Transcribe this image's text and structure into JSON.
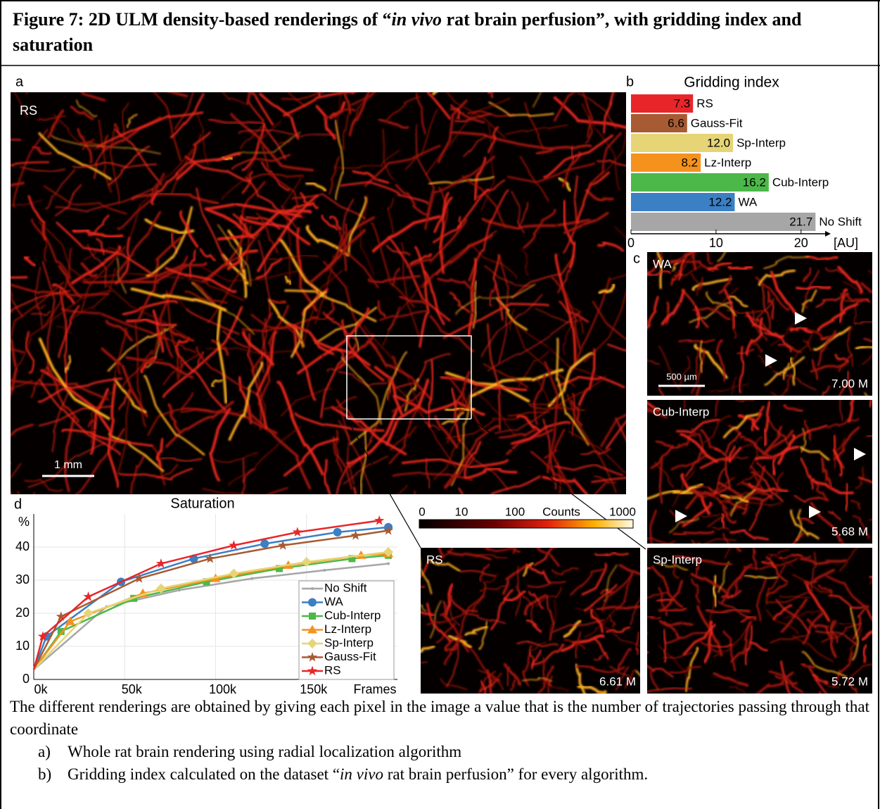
{
  "header": {
    "title": [
      "Figure 7: 2D ULM density-based renderings of “",
      "in vivo",
      " rat brain perfusion”, with gridding index and saturation"
    ]
  },
  "panels": {
    "a": {
      "label": "a",
      "image_label": "RS",
      "scale_bar": "1 mm"
    },
    "c": {
      "label": "c",
      "images": [
        {
          "label": "WA",
          "count": "7.00 M",
          "scale_bar": "500 µm"
        },
        {
          "label": "Cub-Interp",
          "count": "5.68 M"
        },
        {
          "label": "Sp-Interp",
          "count": "5.72 M"
        },
        {
          "label": "RS",
          "count": "6.61 M"
        }
      ]
    },
    "colorbar": {
      "ticks": [
        0,
        10,
        100,
        1000
      ],
      "label": "Counts"
    }
  },
  "chart_data": [
    {
      "type": "bar",
      "orientation": "horizontal",
      "label": "b",
      "title": "Gridding index",
      "x_label": "[AU]",
      "categories": [
        "RS",
        "Gauss-Fit",
        "Sp-Interp",
        "Lz-Interp",
        "Cub-Interp",
        "WA",
        "No Shift"
      ],
      "values": [
        7.3,
        6.6,
        12.0,
        8.2,
        16.2,
        12.2,
        21.7
      ],
      "value_labels": [
        "7.3",
        "6.6",
        "12.0",
        "8.2",
        "16.2",
        "12.2",
        "21.7"
      ],
      "colors": [
        "#e8262a",
        "#a85a32",
        "#e6d576",
        "#f5921e",
        "#4db84a",
        "#3b7fc4",
        "#a6a6a6"
      ],
      "xlim": [
        0,
        22.5
      ],
      "xticks": [
        0,
        10,
        20
      ]
    },
    {
      "type": "line",
      "label": "d",
      "title": "Saturation",
      "y_label": "%",
      "x_label": "Frames",
      "xlim": [
        0,
        200000
      ],
      "ylim": [
        0,
        50
      ],
      "xticks": [
        {
          "value": 0,
          "label": "0k"
        },
        {
          "value": 50000,
          "label": "50k"
        },
        {
          "value": 100000,
          "label": "100k"
        },
        {
          "value": 150000,
          "label": "150k"
        }
      ],
      "yticks": [
        0,
        10,
        20,
        30,
        40
      ],
      "grid": true,
      "series": [
        {
          "name": "No Shift",
          "color": "#a6a6a6",
          "marker": "dot",
          "x": [
            0,
            40000,
            80000,
            120000,
            160000,
            195000
          ],
          "values": [
            3,
            22,
            27,
            30.5,
            33,
            35
          ]
        },
        {
          "name": "WA",
          "color": "#3b7fc4",
          "marker": "circle",
          "x": [
            0,
            7000,
            48000,
            88000,
            127000,
            167000,
            195000
          ],
          "values": [
            3,
            13,
            29.5,
            36.5,
            41,
            44.5,
            46
          ]
        },
        {
          "name": "Cub-Interp",
          "color": "#4db84a",
          "marker": "square",
          "x": [
            0,
            15000,
            55000,
            95000,
            135000,
            175000,
            195000
          ],
          "values": [
            3,
            14.5,
            24.5,
            29.5,
            33.5,
            36.5,
            37.5
          ]
        },
        {
          "name": "Lz-Interp",
          "color": "#f5921e",
          "marker": "triangle",
          "x": [
            0,
            20000,
            60000,
            100000,
            140000,
            180000,
            195000
          ],
          "values": [
            3,
            17.5,
            26,
            30.5,
            34.5,
            37.5,
            38
          ]
        },
        {
          "name": "Sp-Interp",
          "color": "#e6d576",
          "marker": "diamond",
          "x": [
            0,
            30000,
            70000,
            110000,
            150000,
            195000
          ],
          "values": [
            3,
            20,
            27.5,
            32,
            35.5,
            38.5
          ]
        },
        {
          "name": "Gauss-Fit",
          "color": "#a85a32",
          "marker": "star",
          "x": [
            0,
            15000,
            58000,
            97000,
            137000,
            177000,
            195000
          ],
          "values": [
            3,
            19,
            30.5,
            36.5,
            40.5,
            43.5,
            45
          ]
        },
        {
          "name": "RS",
          "color": "#e8262a",
          "marker": "star",
          "x": [
            0,
            5000,
            30000,
            70000,
            110000,
            145000,
            190000
          ],
          "values": [
            3,
            13,
            25,
            35,
            40.5,
            44.5,
            48
          ]
        }
      ]
    }
  ],
  "caption": {
    "text": "The different renderings are obtained by giving each pixel in the image a value that is the number of trajectories passing through that coordinate",
    "items": [
      {
        "marker": "a)",
        "parts": [
          "Whole rat brain rendering using radial localization algorithm"
        ]
      },
      {
        "marker": "b)",
        "parts": [
          "Gridding index calculated on the dataset “",
          "in vivo",
          " rat brain perfusion” for every algorithm."
        ]
      }
    ]
  }
}
